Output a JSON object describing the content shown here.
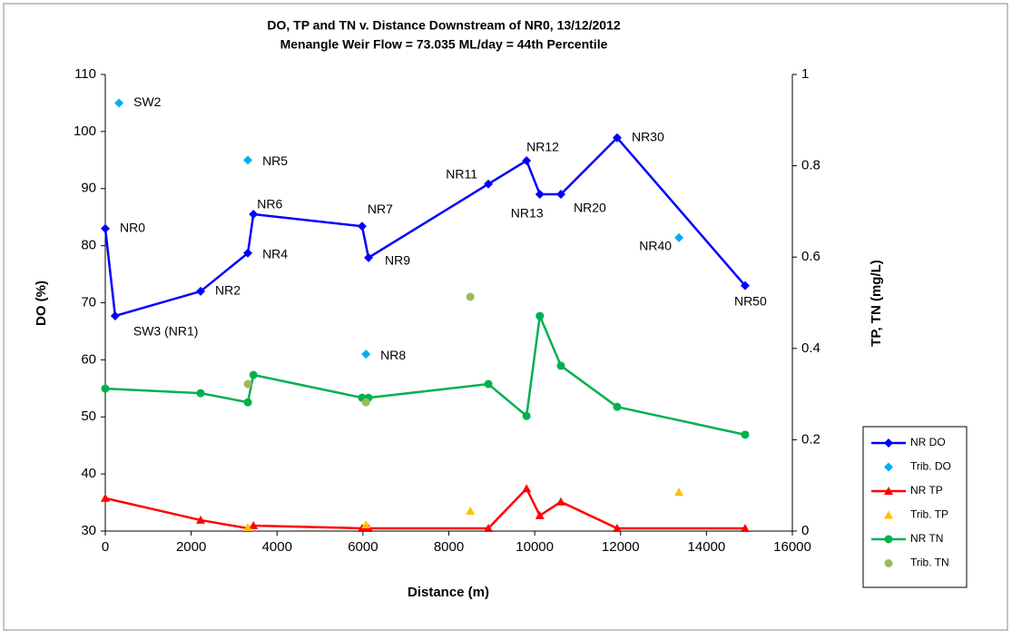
{
  "chart_data": {
    "type": "scatter",
    "title": "DO, TP and TN v. Distance Downstream of NR0, 13/12/2012",
    "subtitle": "Menangle Weir Flow = 73.035 ML/day = 44th Percentile",
    "x_label": "Distance (m)",
    "y_label": "DO (%)",
    "y2_label": "TP, TN (mg/L)",
    "xlim": [
      0,
      16000
    ],
    "xticks": [
      0,
      2000,
      4000,
      6000,
      8000,
      10000,
      12000,
      14000,
      16000
    ],
    "ylim": [
      30,
      110
    ],
    "yticks": [
      30,
      40,
      50,
      60,
      70,
      80,
      90,
      100,
      110
    ],
    "y2lim": [
      0,
      1
    ],
    "y2ticks": [
      0,
      0.2,
      0.4,
      0.6,
      0.8,
      1
    ],
    "grid": false,
    "legend": "right",
    "series": [
      {
        "name": "NR DO",
        "color": "#0000ff",
        "marker": "diamond",
        "line": true,
        "axis": "y",
        "x": [
          0,
          230,
          2220,
          3320,
          3450,
          5980,
          6130,
          8920,
          9810,
          10120,
          10610,
          11920,
          14900
        ],
        "values": [
          83,
          67.7,
          72,
          78.7,
          85.5,
          83.4,
          77.9,
          90.8,
          94.9,
          89,
          89,
          98.9,
          73
        ],
        "labels": [
          "NR0",
          "SW3 (NR1)",
          "NR2",
          "NR4",
          "NR6",
          "NR7",
          "NR9",
          "NR11",
          "NR12",
          "NR13",
          "NR20",
          "NR30",
          "NR50"
        ]
      },
      {
        "name": "Trib. DO",
        "color": "#00b0f0",
        "marker": "diamond",
        "line": false,
        "axis": "y",
        "x": [
          320,
          3320,
          6070,
          13360
        ],
        "values": [
          105,
          95,
          61,
          81.4
        ],
        "labels": [
          "SW2",
          "NR5",
          "NR8",
          "NR40"
        ]
      },
      {
        "name": "NR TP",
        "color": "#ff0000",
        "marker": "triangle",
        "line": true,
        "axis": "y2",
        "x": [
          0,
          2220,
          3320,
          3450,
          5980,
          6130,
          8920,
          9810,
          10120,
          10610,
          11920,
          14900
        ],
        "values": [
          0.072,
          0.024,
          0.006,
          0.012,
          0.006,
          0.006,
          0.006,
          0.093,
          0.034,
          0.064,
          0.006,
          0.006
        ]
      },
      {
        "name": "Trib. TP",
        "color": "#ffc000",
        "marker": "triangle",
        "line": false,
        "axis": "y2",
        "x": [
          3320,
          6070,
          8500,
          13360
        ],
        "values": [
          0.008,
          0.014,
          0.044,
          0.085
        ]
      },
      {
        "name": "NR TN",
        "color": "#00b050",
        "marker": "circle",
        "line": true,
        "axis": "y2",
        "x": [
          0,
          2220,
          3320,
          3450,
          5980,
          6130,
          8920,
          9810,
          10120,
          10610,
          11920,
          14900
        ],
        "values": [
          0.312,
          0.302,
          0.282,
          0.342,
          0.292,
          0.292,
          0.322,
          0.252,
          0.471,
          0.362,
          0.272,
          0.211
        ]
      },
      {
        "name": "Trib. TN",
        "color": "#9bbb59",
        "marker": "circle",
        "line": false,
        "axis": "y2",
        "x": [
          3320,
          6070,
          8500
        ],
        "values": [
          0.322,
          0.282,
          0.513
        ]
      }
    ]
  }
}
